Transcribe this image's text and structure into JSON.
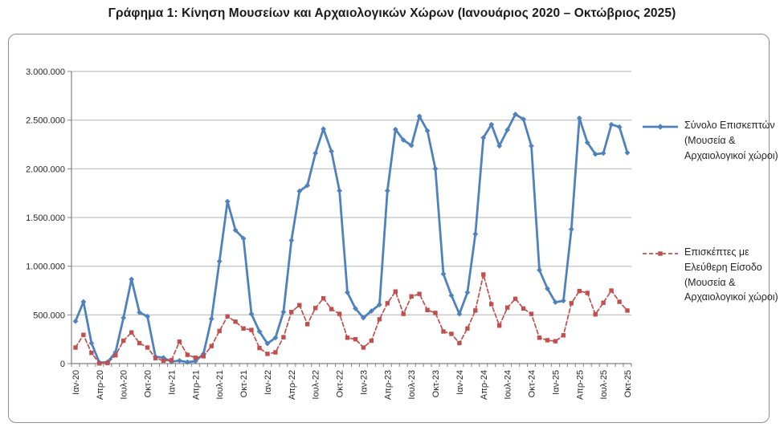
{
  "title": "Γράφημα 1: Κίνηση Μουσείων και Αρχαιολογικών Χώρων (Ιανουάριος 2020 – Οκτώβριος 2025)",
  "legend": {
    "position": "right",
    "entries": [
      {
        "label": "Σύνολο Επισκεπτών (Μουσεία & Αρχαιολογικοί χώροι)"
      },
      {
        "label": "Επισκέπτες με Ελεύθερη Είσοδο (Μουσεία & Αρχαιολογικοί χώροι)"
      }
    ]
  },
  "chart_data": {
    "type": "line",
    "title": "Γράφημα 1: Κίνηση Μουσείων και Αρχαιολογικών Χώρων (Ιανουάριος 2020 – Οκτώβριος 2025)",
    "x_range": "Ιαν-20 to Οκτ-25, monthly (70 points)",
    "x_tick_labels": [
      "Ιαν-20",
      "Απρ-20",
      "Ιουλ-20",
      "Οκτ-20",
      "Ιαν-21",
      "Απρ-21",
      "Ιουλ-21",
      "Οκτ-21",
      "Ιαν-22",
      "Απρ-22",
      "Ιουλ-22",
      "Οκτ-22",
      "Ιαν-23",
      "Απρ-23",
      "Ιουλ-23",
      "Οκτ-23",
      "Ιαν-24",
      "Απρ-24",
      "Ιουλ-24",
      "Οκτ-24",
      "Ιαν-25",
      "Απρ-25",
      "Ιουλ-25",
      "Οκτ-25"
    ],
    "x_tick_every_months": 3,
    "y_ticks": [
      "0",
      "500.000",
      "1.000.000",
      "1.500.000",
      "2.000.000",
      "2.500.000",
      "3.000.000"
    ],
    "y_step": 500000,
    "ylim": [
      0,
      3000000
    ],
    "grid": true,
    "legend_position": "right",
    "colors": {
      "grid": "#b3b3b3",
      "axis": "#808080",
      "blue": "#4f81bd",
      "red": "#c0504d"
    },
    "series": [
      {
        "name": "Σύνολο Επισκεπτών (Μουσεία & Αρχαιολογικοί χώροι)",
        "color": "#4f81bd",
        "style": "solid",
        "marker": "diamond",
        "width": 2.8,
        "dash": "",
        "values": [
          435000,
          635000,
          210000,
          10000,
          15000,
          115000,
          470000,
          865000,
          525000,
          485000,
          70000,
          60000,
          20000,
          30000,
          15000,
          25000,
          100000,
          460000,
          1050000,
          1665000,
          1370000,
          1285000,
          510000,
          330000,
          205000,
          265000,
          530000,
          1265000,
          1770000,
          1830000,
          2160000,
          2410000,
          2180000,
          1775000,
          730000,
          565000,
          470000,
          540000,
          605000,
          1775000,
          2405000,
          2295000,
          2240000,
          2540000,
          2390000,
          2000000,
          920000,
          700000,
          510000,
          730000,
          1330000,
          2320000,
          2455000,
          2235000,
          2400000,
          2560000,
          2510000,
          2235000,
          960000,
          770000,
          630000,
          645000,
          1380000,
          2520000,
          2270000,
          2150000,
          2160000,
          2455000,
          2430000,
          2165000
        ]
      },
      {
        "name": "Επισκέπτες με Ελεύθερη Είσοδο (Μουσεία & Αρχαιολογικοί χώροι)",
        "color": "#c0504d",
        "style": "dashed",
        "marker": "square",
        "width": 1.7,
        "dash": "5 3",
        "values": [
          165000,
          295000,
          110000,
          2000,
          5000,
          85000,
          235000,
          320000,
          210000,
          165000,
          55000,
          30000,
          35000,
          225000,
          90000,
          60000,
          75000,
          180000,
          335000,
          485000,
          430000,
          360000,
          345000,
          160000,
          100000,
          115000,
          270000,
          530000,
          600000,
          405000,
          570000,
          670000,
          560000,
          510000,
          265000,
          250000,
          165000,
          235000,
          455000,
          620000,
          740000,
          510000,
          690000,
          715000,
          550000,
          520000,
          330000,
          305000,
          210000,
          360000,
          545000,
          915000,
          610000,
          390000,
          575000,
          665000,
          565000,
          510000,
          265000,
          240000,
          230000,
          290000,
          620000,
          745000,
          725000,
          505000,
          625000,
          750000,
          635000,
          545000
        ]
      }
    ]
  }
}
